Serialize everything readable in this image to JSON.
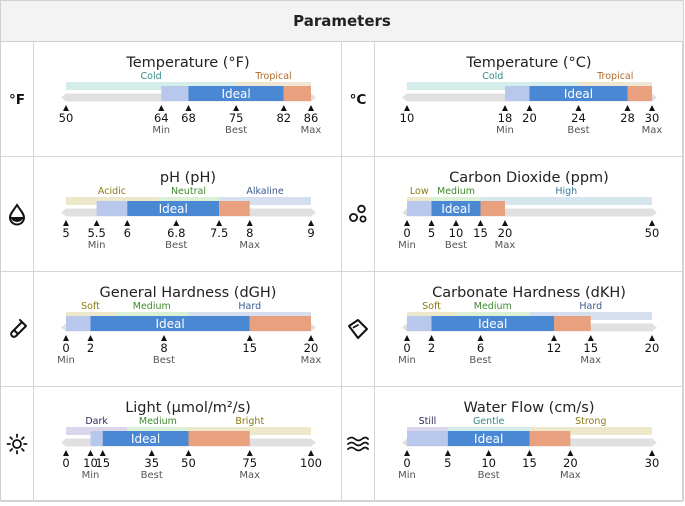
{
  "header": {
    "title": "Parameters"
  },
  "colors": {
    "ideal": "#4a88d4",
    "low": "#b7c8ec",
    "high": "#e9a07e",
    "track": "#e0e0e0",
    "tick": "#111111"
  },
  "params": [
    {
      "id": "temp-f",
      "title": "Temperature (°F)",
      "icon": "fahrenheit-icon",
      "icon_text": "°F",
      "min": 50,
      "max": 86,
      "ticks": [
        {
          "v": 50,
          "t": "50"
        },
        {
          "v": 64,
          "t": "64",
          "s": "Min"
        },
        {
          "v": 68,
          "t": "68"
        },
        {
          "v": 75,
          "t": "75",
          "s": "Best"
        },
        {
          "v": 82,
          "t": "82"
        },
        {
          "v": 86,
          "t": "86",
          "s": "Max"
        }
      ],
      "bar": [
        {
          "from": 64,
          "to": 68,
          "c": "low"
        },
        {
          "from": 68,
          "to": 82,
          "c": "ideal",
          "label": "Ideal"
        },
        {
          "from": 82,
          "to": 86,
          "c": "high"
        }
      ],
      "zones": [
        {
          "from": 50,
          "to": 75,
          "label": "Cold",
          "color": "#d4ecea",
          "tc": "#2d8c86"
        },
        {
          "from": 75,
          "to": 86,
          "label": "Tropical",
          "color": "#efe6d6",
          "tc": "#b06a2c"
        }
      ]
    },
    {
      "id": "temp-c",
      "title": "Temperature (°C)",
      "icon": "celsius-icon",
      "icon_text": "°C",
      "min": 10,
      "max": 30,
      "ticks": [
        {
          "v": 10,
          "t": "10"
        },
        {
          "v": 18,
          "t": "18",
          "s": "Min"
        },
        {
          "v": 20,
          "t": "20"
        },
        {
          "v": 24,
          "t": "24",
          "s": "Best"
        },
        {
          "v": 28,
          "t": "28"
        },
        {
          "v": 30,
          "t": "30",
          "s": "Max"
        }
      ],
      "bar": [
        {
          "from": 18,
          "to": 20,
          "c": "low"
        },
        {
          "from": 20,
          "to": 28,
          "c": "ideal",
          "label": "Ideal"
        },
        {
          "from": 28,
          "to": 30,
          "c": "high"
        }
      ],
      "zones": [
        {
          "from": 10,
          "to": 24,
          "label": "Cold",
          "color": "#d4ecea",
          "tc": "#2d8c86"
        },
        {
          "from": 24,
          "to": 30,
          "label": "Tropical",
          "color": "#efe6d6",
          "tc": "#b06a2c"
        }
      ]
    },
    {
      "id": "ph",
      "title": "pH (pH)",
      "icon": "water-drop-icon",
      "min": 5,
      "max": 9,
      "ticks": [
        {
          "v": 5,
          "t": "5"
        },
        {
          "v": 5.5,
          "t": "5.5",
          "s": "Min"
        },
        {
          "v": 6,
          "t": "6"
        },
        {
          "v": 6.8,
          "t": "6.8",
          "s": "Best"
        },
        {
          "v": 7.5,
          "t": "7.5"
        },
        {
          "v": 8,
          "t": "8",
          "s": "Max"
        },
        {
          "v": 9,
          "t": "9"
        }
      ],
      "bar": [
        {
          "from": 5.5,
          "to": 6,
          "c": "low"
        },
        {
          "from": 6,
          "to": 7.5,
          "c": "ideal",
          "label": "Ideal"
        },
        {
          "from": 7.5,
          "to": 8,
          "c": "high"
        }
      ],
      "zones": [
        {
          "from": 5,
          "to": 6.5,
          "label": "Acidic",
          "color": "#ece8c9",
          "tc": "#8a7b12"
        },
        {
          "from": 6.5,
          "to": 7.5,
          "label": "Neutral",
          "color": "#dcefd7",
          "tc": "#3f8a2c"
        },
        {
          "from": 7.5,
          "to": 9,
          "label": "Alkaline",
          "color": "#d6dfee",
          "tc": "#3a5a8c"
        }
      ]
    },
    {
      "id": "co2",
      "title": "Carbon Dioxide (ppm)",
      "icon": "bubbles-icon",
      "min": 0,
      "max": 50,
      "ticks": [
        {
          "v": 0,
          "t": "0",
          "s": "Min"
        },
        {
          "v": 5,
          "t": "5"
        },
        {
          "v": 10,
          "t": "10",
          "s": "Best"
        },
        {
          "v": 15,
          "t": "15"
        },
        {
          "v": 20,
          "t": "20",
          "s": "Max"
        },
        {
          "v": 50,
          "t": "50"
        }
      ],
      "bar": [
        {
          "from": 0,
          "to": 5,
          "c": "low"
        },
        {
          "from": 5,
          "to": 15,
          "c": "ideal",
          "label": "Ideal"
        },
        {
          "from": 15,
          "to": 20,
          "c": "high"
        }
      ],
      "zones": [
        {
          "from": 0,
          "to": 5,
          "label": "Low",
          "color": "#ece8c9",
          "tc": "#8a7b12"
        },
        {
          "from": 5,
          "to": 15,
          "label": "Medium",
          "color": "#dcefd7",
          "tc": "#3f8a2c"
        },
        {
          "from": 15,
          "to": 50,
          "label": "High",
          "color": "#d6e6ee",
          "tc": "#3a7a9c"
        }
      ]
    },
    {
      "id": "gh",
      "title": "General Hardness (dGH)",
      "icon": "test-tube-icon",
      "min": 0,
      "max": 20,
      "ticks": [
        {
          "v": 0,
          "t": "0",
          "s": "Min"
        },
        {
          "v": 2,
          "t": "2"
        },
        {
          "v": 8,
          "t": "8",
          "s": "Best"
        },
        {
          "v": 15,
          "t": "15"
        },
        {
          "v": 20,
          "t": "20",
          "s": "Max"
        }
      ],
      "bar": [
        {
          "from": 0,
          "to": 2,
          "c": "low"
        },
        {
          "from": 2,
          "to": 15,
          "c": "ideal",
          "label": "Ideal"
        },
        {
          "from": 15,
          "to": 20,
          "c": "high"
        }
      ],
      "zones": [
        {
          "from": 0,
          "to": 4,
          "label": "Soft",
          "color": "#ece8c9",
          "tc": "#8a7b12"
        },
        {
          "from": 4,
          "to": 10,
          "label": "Medium",
          "color": "#dcefd7",
          "tc": "#3f8a2c"
        },
        {
          "from": 10,
          "to": 20,
          "label": "Hard",
          "color": "#d6dfee",
          "tc": "#3a5a8c"
        }
      ]
    },
    {
      "id": "kh",
      "title": "Carbonate Hardness (dKH)",
      "icon": "diamond-icon",
      "min": 0,
      "max": 20,
      "ticks": [
        {
          "v": 0,
          "t": "0",
          "s": "Min"
        },
        {
          "v": 2,
          "t": "2"
        },
        {
          "v": 6,
          "t": "6",
          "s": "Best"
        },
        {
          "v": 12,
          "t": "12"
        },
        {
          "v": 15,
          "t": "15",
          "s": "Max"
        },
        {
          "v": 20,
          "t": "20"
        }
      ],
      "bar": [
        {
          "from": 0,
          "to": 2,
          "c": "low"
        },
        {
          "from": 2,
          "to": 12,
          "c": "ideal",
          "label": "Ideal"
        },
        {
          "from": 12,
          "to": 15,
          "c": "high"
        }
      ],
      "zones": [
        {
          "from": 0,
          "to": 4,
          "label": "Soft",
          "color": "#ece8c9",
          "tc": "#8a7b12"
        },
        {
          "from": 4,
          "to": 10,
          "label": "Medium",
          "color": "#dcefd7",
          "tc": "#3f8a2c"
        },
        {
          "from": 10,
          "to": 20,
          "label": "Hard",
          "color": "#d6dfee",
          "tc": "#3a5a8c"
        }
      ]
    },
    {
      "id": "light",
      "title": "Light (µmol/m²/s)",
      "icon": "sun-icon",
      "min": 0,
      "max": 100,
      "ticks": [
        {
          "v": 0,
          "t": "0"
        },
        {
          "v": 10,
          "t": "10",
          "s": "Min"
        },
        {
          "v": 15,
          "t": "15"
        },
        {
          "v": 35,
          "t": "35",
          "s": "Best"
        },
        {
          "v": 50,
          "t": "50"
        },
        {
          "v": 75,
          "t": "75",
          "s": "Max"
        },
        {
          "v": 100,
          "t": "100"
        }
      ],
      "bar": [
        {
          "from": 10,
          "to": 15,
          "c": "low"
        },
        {
          "from": 15,
          "to": 50,
          "c": "ideal",
          "label": "Ideal"
        },
        {
          "from": 50,
          "to": 75,
          "c": "high"
        }
      ],
      "zones": [
        {
          "from": 0,
          "to": 25,
          "label": "Dark",
          "color": "#dad6ec",
          "tc": "#2a2a5a"
        },
        {
          "from": 25,
          "to": 50,
          "label": "Medium",
          "color": "#dcefd7",
          "tc": "#3f8a2c"
        },
        {
          "from": 50,
          "to": 100,
          "label": "Bright",
          "color": "#ece8c9",
          "tc": "#8a7b12"
        }
      ]
    },
    {
      "id": "flow",
      "title": "Water Flow (cm/s)",
      "icon": "water-waves-icon",
      "min": 0,
      "max": 30,
      "ticks": [
        {
          "v": 0,
          "t": "0",
          "s": "Min"
        },
        {
          "v": 5,
          "t": "5"
        },
        {
          "v": 10,
          "t": "10",
          "s": "Best"
        },
        {
          "v": 15,
          "t": "15"
        },
        {
          "v": 20,
          "t": "20",
          "s": "Max"
        },
        {
          "v": 30,
          "t": "30"
        }
      ],
      "bar": [
        {
          "from": 0,
          "to": 5,
          "c": "low"
        },
        {
          "from": 5,
          "to": 15,
          "c": "ideal",
          "label": "Ideal"
        },
        {
          "from": 15,
          "to": 20,
          "c": "high"
        }
      ],
      "zones": [
        {
          "from": 0,
          "to": 5,
          "label": "Still",
          "color": "#dad6ec",
          "tc": "#2a2a5a"
        },
        {
          "from": 5,
          "to": 15,
          "label": "Gentle",
          "color": "#d4ecea",
          "tc": "#2d8c86"
        },
        {
          "from": 15,
          "to": 30,
          "label": "Strong",
          "color": "#ece8c9",
          "tc": "#8a7b12"
        }
      ]
    }
  ]
}
